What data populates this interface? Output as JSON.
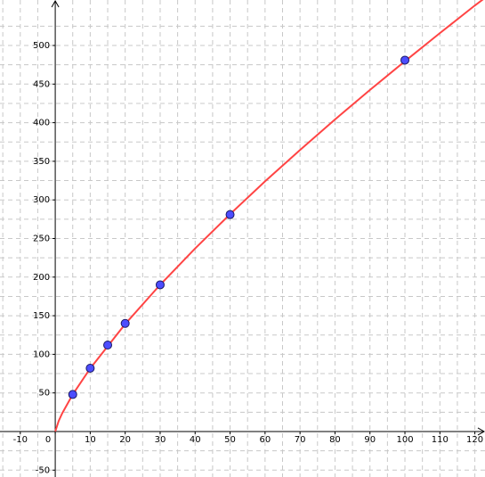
{
  "chart_data": {
    "type": "scatter",
    "xlim": [
      -15.8,
      122.9
    ],
    "ylim": [
      -58.9,
      558.9
    ],
    "xticks": [
      -10,
      0,
      10,
      20,
      30,
      40,
      50,
      60,
      70,
      80,
      90,
      100,
      110,
      120
    ],
    "yticks": [
      -50,
      50,
      100,
      150,
      200,
      250,
      300,
      350,
      400,
      450,
      500
    ],
    "xgrid": [
      -15,
      -5,
      5,
      15,
      25,
      35,
      45,
      55,
      65,
      75,
      85,
      95,
      105,
      115
    ],
    "ygrid": [
      -25,
      25,
      75,
      125,
      175,
      225,
      275,
      325,
      375,
      425,
      475,
      525
    ],
    "grid": true,
    "series": [
      {
        "kind": "line",
        "color": "#ff4444",
        "x": [
          0,
          1,
          2,
          5,
          10,
          20,
          30,
          40,
          50,
          60,
          70,
          80,
          90,
          100,
          110,
          120,
          123
        ],
        "values": [
          0,
          13.9,
          23.7,
          48,
          81.7,
          139.2,
          190.1,
          237.1,
          281.5,
          324,
          364.6,
          404.2,
          442.4,
          479.6,
          516,
          551.8,
          562
        ]
      },
      {
        "kind": "points",
        "color": "#4d4dff",
        "x": [
          5,
          10,
          15,
          20,
          30,
          50,
          100
        ],
        "values": [
          48,
          82,
          112,
          140,
          190,
          281,
          481
        ]
      }
    ]
  }
}
